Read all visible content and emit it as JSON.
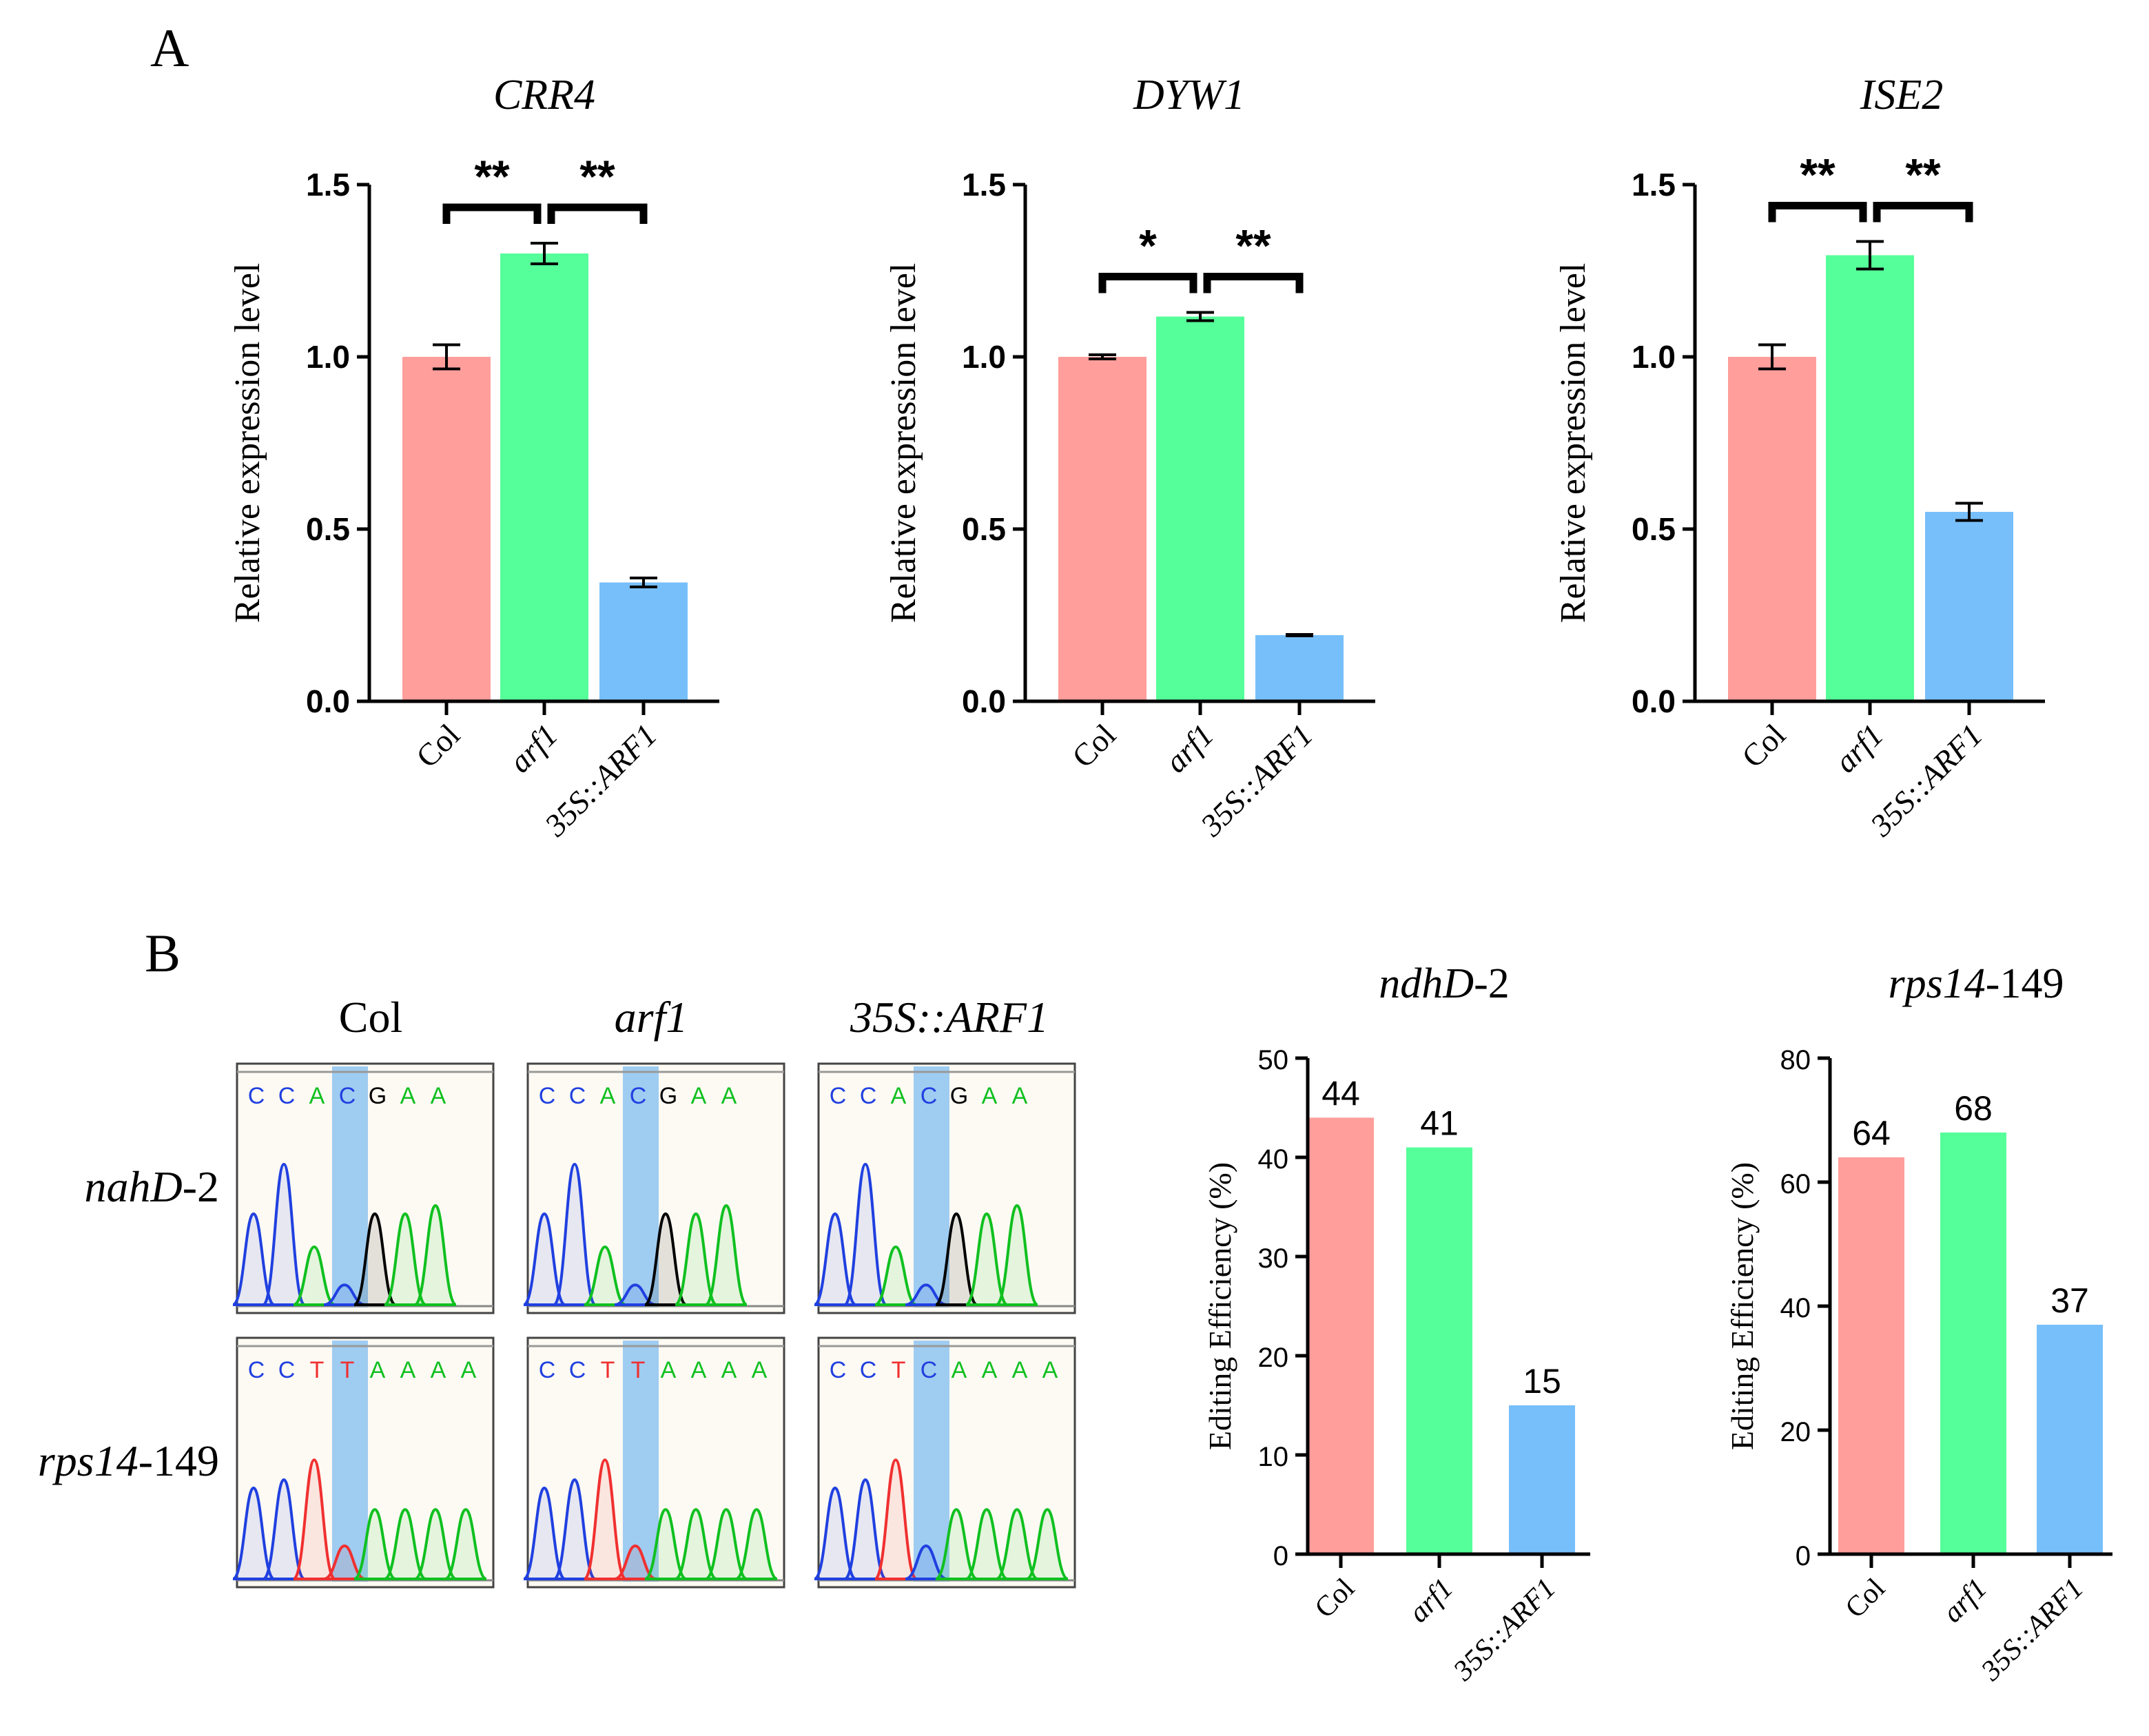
{
  "panels": {
    "A": "A",
    "B": "B"
  },
  "colors": {
    "col": "#FF9E9B",
    "arf1": "#55FF99",
    "oe": "#77BFFA",
    "axis": "#000000",
    "blue_trace": "#2040E0",
    "green_trace": "#10C020",
    "black_trace": "#000000",
    "red_trace": "#F03030",
    "highlight": "#8EC3F0",
    "trace_bg": "#FDFAF3"
  },
  "chart_data": [
    {
      "id": "crr4",
      "type": "bar",
      "title": "CRR4",
      "ylabel": "Relative expression level",
      "xlabel": "",
      "ylim": [
        0,
        1.5
      ],
      "yticks": [
        "0.0",
        "0.5",
        "1.0",
        "1.5"
      ],
      "categories": [
        "Col",
        "arf1",
        "35S::ARF1"
      ],
      "values": [
        1.0,
        1.3,
        0.345
      ],
      "errors": [
        0.035,
        0.03,
        0.013
      ],
      "significance": [
        "**",
        "**"
      ]
    },
    {
      "id": "dyw1",
      "type": "bar",
      "title": "DYW1",
      "ylabel": "Relative expression level",
      "xlabel": "",
      "ylim": [
        0,
        1.5
      ],
      "yticks": [
        "0.0",
        "0.5",
        "1.0",
        "1.5"
      ],
      "categories": [
        "Col",
        "arf1",
        "35S::ARF1"
      ],
      "values": [
        1.0,
        1.117,
        0.192
      ],
      "errors": [
        0.006,
        0.012,
        0.002
      ],
      "significance": [
        "*",
        "**"
      ]
    },
    {
      "id": "ise2",
      "type": "bar",
      "title": "ISE2",
      "ylabel": "Relative expression level",
      "xlabel": "",
      "ylim": [
        0,
        1.5
      ],
      "yticks": [
        "0.0",
        "0.5",
        "1.0",
        "1.5"
      ],
      "categories": [
        "Col",
        "arf1",
        "35S::ARF1"
      ],
      "values": [
        1.0,
        1.295,
        0.55
      ],
      "errors": [
        0.035,
        0.04,
        0.025
      ],
      "significance": [
        "**",
        "**"
      ]
    },
    {
      "id": "ndhd",
      "type": "bar",
      "title": "ndhD",
      "title_suffix": "-2",
      "ylabel": "Editing Efficiency (%)",
      "xlabel": "",
      "ylim": [
        0,
        50
      ],
      "yticks": [
        "0",
        "10",
        "20",
        "30",
        "40",
        "50"
      ],
      "categories": [
        "Col",
        "arf1",
        "35S::ARF1"
      ],
      "values": [
        44,
        41,
        15
      ],
      "value_labels": [
        "44",
        "41",
        "15"
      ]
    },
    {
      "id": "rps14",
      "type": "bar",
      "title": "rps14",
      "title_suffix": "-149",
      "ylabel": "Editing Efficiency (%)",
      "xlabel": "",
      "ylim": [
        0,
        80
      ],
      "yticks": [
        "0",
        "20",
        "40",
        "60",
        "80"
      ],
      "categories": [
        "Col",
        "arf1",
        "35S::ARF1"
      ],
      "values": [
        64,
        68,
        37
      ],
      "value_labels": [
        "64",
        "68",
        "37"
      ]
    }
  ],
  "chromatograms": {
    "columns": [
      "Col",
      "arf1",
      "35S::ARF1"
    ],
    "rows": [
      {
        "label": "nahD",
        "label_suffix": "-2",
        "bases": [
          [
            "C",
            "C",
            "A",
            "C",
            "G",
            "A",
            "A"
          ],
          [
            "C",
            "C",
            "A",
            "C",
            "G",
            "A",
            "A"
          ],
          [
            "C",
            "C",
            "A",
            "C",
            "G",
            "A",
            "A"
          ]
        ]
      },
      {
        "label": "rps14",
        "label_suffix": "-149",
        "bases": [
          [
            "C",
            "C",
            "T",
            "T",
            "A",
            "A",
            "A",
            "A"
          ],
          [
            "C",
            "C",
            "T",
            "T",
            "A",
            "A",
            "A",
            "A"
          ],
          [
            "C",
            "C",
            "T",
            "C",
            "A",
            "A",
            "A",
            "A"
          ]
        ]
      }
    ]
  }
}
